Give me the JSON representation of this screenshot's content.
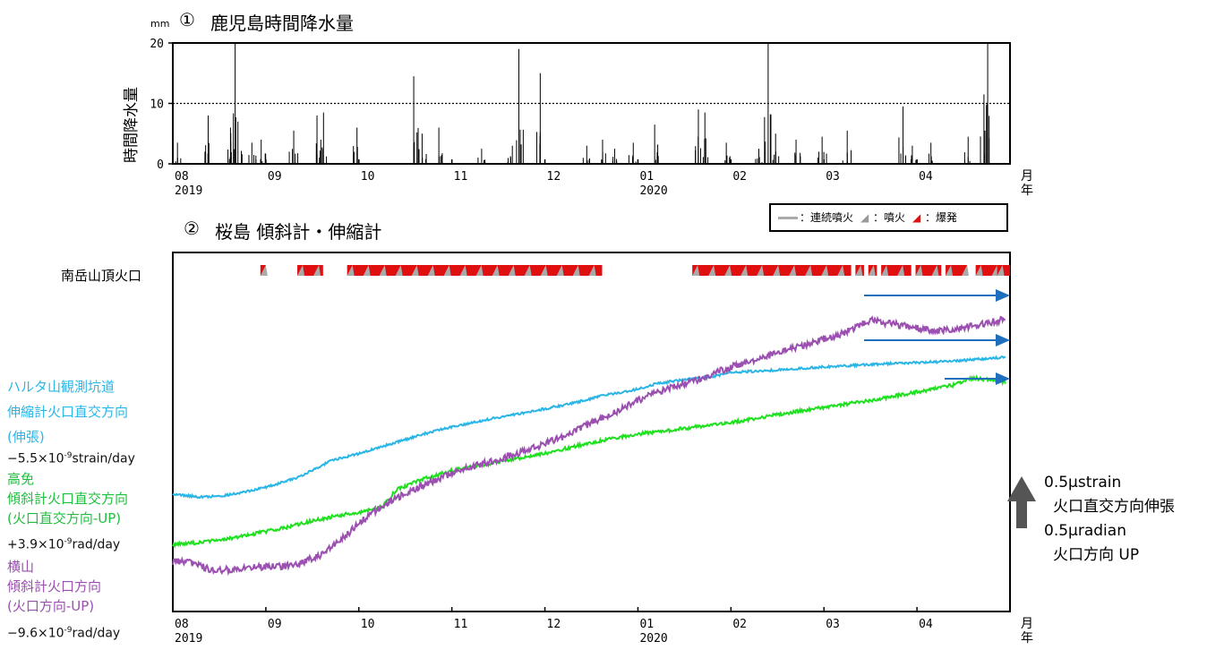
{
  "panel1": {
    "circled_num": "①",
    "title": "鹿児島時間降水量",
    "unit": "mm",
    "ylabel": "時間降水量",
    "yticks": [
      "20",
      "10",
      "0"
    ]
  },
  "panel2": {
    "circled_num": "②",
    "title": "桜島 傾斜計・伸縮計",
    "crater_label": "南岳山頂火口"
  },
  "legend": {
    "continuous": "：連続噴火",
    "eruption": "：噴火",
    "explosion": "：爆発"
  },
  "axis": {
    "months": [
      "08",
      "09",
      "10",
      "11",
      "12",
      "01",
      "02",
      "03",
      "04"
    ],
    "year_start": "2019",
    "year_mid": "2020",
    "month_word": "月",
    "year_word": "年"
  },
  "side_labels": {
    "haruta": {
      "line1": "ハルタ山観測坑道",
      "line2": "伸縮計火口直交方向",
      "line3": "(伸張)"
    },
    "haruta_rate": {
      "pre": "−5.5×10",
      "exp": "-9",
      "post": "strain/day"
    },
    "takamen": {
      "line1": "高免",
      "line2": "傾斜計火口直交方向",
      "line3": "(火口直交方向-UP)"
    },
    "takamen_rate": {
      "pre": "+3.9×10",
      "exp": "-9",
      "post": "rad/day"
    },
    "yokoyama": {
      "line1": "横山",
      "line2": "傾斜計火口方向",
      "line3": "(火口方向-UP)"
    },
    "yokoyama_rate": {
      "pre": "−9.6×10",
      "exp": "-9",
      "post": "rad/day"
    }
  },
  "scale": {
    "line1": "0.5μstrain",
    "line2": "火口直交方向伸張",
    "line3": "0.5μradian",
    "line4": "火口方向 UP"
  },
  "colors": {
    "strain": "#29b6e6",
    "tilt_takamen": "#1fe01f",
    "tilt_yokoyama": "#9b4fb0",
    "arrow": "#1f6fbf",
    "explosion": "#e01010",
    "eruption": "#aaaaaa"
  },
  "chart_data": [
    {
      "type": "bar",
      "title": "鹿児島時間降水量",
      "ylabel": "時間降水量",
      "unit": "mm",
      "ylim": [
        0,
        20
      ],
      "reference_line": 10,
      "x_range": [
        "2019-08-01",
        "2020-04-30"
      ],
      "x_unit": "month index (0 = 2019-08-01)",
      "peaks": [
        {
          "x": 0.05,
          "value": 3.5
        },
        {
          "x": 0.38,
          "value": 8
        },
        {
          "x": 0.62,
          "value": 6
        },
        {
          "x": 0.67,
          "value": 20
        },
        {
          "x": 0.7,
          "value": 7
        },
        {
          "x": 0.85,
          "value": 3.5
        },
        {
          "x": 0.95,
          "value": 4
        },
        {
          "x": 1.3,
          "value": 5.5
        },
        {
          "x": 1.55,
          "value": 8
        },
        {
          "x": 1.62,
          "value": 8.5
        },
        {
          "x": 1.98,
          "value": 6
        },
        {
          "x": 2.59,
          "value": 14.5
        },
        {
          "x": 2.68,
          "value": 5
        },
        {
          "x": 2.86,
          "value": 6
        },
        {
          "x": 3.32,
          "value": 2.5
        },
        {
          "x": 3.65,
          "value": 3
        },
        {
          "x": 3.72,
          "value": 19
        },
        {
          "x": 3.95,
          "value": 15
        },
        {
          "x": 4.45,
          "value": 3
        },
        {
          "x": 4.62,
          "value": 4
        },
        {
          "x": 4.75,
          "value": 2.5
        },
        {
          "x": 4.95,
          "value": 3.5
        },
        {
          "x": 5.18,
          "value": 6.5
        },
        {
          "x": 5.65,
          "value": 9
        },
        {
          "x": 5.72,
          "value": 8.5
        },
        {
          "x": 5.95,
          "value": 3.5
        },
        {
          "x": 6.3,
          "value": 2.5
        },
        {
          "x": 6.4,
          "value": 20
        },
        {
          "x": 6.48,
          "value": 5
        },
        {
          "x": 6.7,
          "value": 4
        },
        {
          "x": 6.98,
          "value": 4.5
        },
        {
          "x": 7.25,
          "value": 5.5
        },
        {
          "x": 7.85,
          "value": 9.5
        },
        {
          "x": 7.95,
          "value": 3
        },
        {
          "x": 8.15,
          "value": 3.5
        },
        {
          "x": 8.55,
          "value": 4.5
        },
        {
          "x": 8.72,
          "value": 11.5
        },
        {
          "x": 8.76,
          "value": 20
        }
      ]
    },
    {
      "type": "line",
      "title": "桜島 傾斜計・伸縮計",
      "x_range": [
        "2019-08-01",
        "2020-04-30"
      ],
      "x_unit": "month index (0 = 2019-08-01)",
      "value_unit": "fraction of vertical extent (0 = bottom, 1 = top)",
      "series": [
        {
          "name": "ハルタ山観測坑道 伸縮計火口直交方向 (伸張)",
          "x": [
            0,
            0.3,
            0.55,
            0.8,
            1.0,
            1.3,
            1.5,
            1.7,
            2.0,
            2.2,
            2.5,
            2.8,
            3.2,
            3.6,
            4.0,
            4.3,
            4.6,
            5.0,
            5.2,
            5.5,
            5.8,
            6.0,
            6.3,
            6.6,
            7.0,
            7.3,
            7.6,
            8.0,
            8.4,
            8.95
          ],
          "values": [
            0.265,
            0.255,
            0.26,
            0.275,
            0.29,
            0.32,
            0.35,
            0.385,
            0.41,
            0.43,
            0.46,
            0.49,
            0.52,
            0.545,
            0.57,
            0.59,
            0.615,
            0.64,
            0.66,
            0.675,
            0.685,
            0.7,
            0.705,
            0.71,
            0.72,
            0.725,
            0.73,
            0.735,
            0.74,
            0.755
          ]
        },
        {
          "name": "高免 傾斜計火口直交方向 (火口直交方向-UP)",
          "x": [
            0,
            0.2,
            0.5,
            0.9,
            1.2,
            1.5,
            1.8,
            2.0,
            2.25,
            2.4,
            2.7,
            3.0,
            3.5,
            4.0,
            4.5,
            5.0,
            5.5,
            6.0,
            6.5,
            7.0,
            7.5,
            8.0,
            8.4,
            8.6,
            8.95
          ],
          "values": [
            0.085,
            0.09,
            0.1,
            0.125,
            0.145,
            0.17,
            0.19,
            0.2,
            0.22,
            0.28,
            0.32,
            0.35,
            0.38,
            0.41,
            0.45,
            0.48,
            0.5,
            0.52,
            0.55,
            0.575,
            0.6,
            0.63,
            0.655,
            0.68,
            0.665
          ]
        },
        {
          "name": "横山 傾斜計火口方向 (火口方向-UP)",
          "x": [
            0,
            0.2,
            0.45,
            0.7,
            1.0,
            1.3,
            1.6,
            1.8,
            2.0,
            2.25,
            2.4,
            2.7,
            3.0,
            3.4,
            3.8,
            4.2,
            4.5,
            4.8,
            5.0,
            5.3,
            5.7,
            6.0,
            6.4,
            6.8,
            7.2,
            7.5,
            7.8,
            8.0,
            8.2,
            8.5,
            8.95
          ],
          "values": [
            0.025,
            0.02,
            -0.01,
            0.0,
            0.005,
            0.01,
            0.05,
            0.1,
            0.16,
            0.225,
            0.25,
            0.3,
            0.34,
            0.38,
            0.42,
            0.47,
            0.52,
            0.565,
            0.6,
            0.64,
            0.68,
            0.72,
            0.76,
            0.8,
            0.84,
            0.885,
            0.87,
            0.86,
            0.845,
            0.86,
            0.89
          ]
        }
      ],
      "eruption_periods": [
        {
          "start": 1.02,
          "end": 1.07
        },
        {
          "start": 1.45,
          "end": 1.75
        },
        {
          "start": 2.03,
          "end": 5.0
        },
        {
          "start": 6.05,
          "end": 7.9
        },
        {
          "start": 7.95,
          "end": 8.05
        },
        {
          "start": 8.1,
          "end": 8.2
        },
        {
          "start": 8.25,
          "end": 8.6
        },
        {
          "start": 8.65,
          "end": 8.95
        },
        {
          "start": 9.0,
          "end": 9.25
        },
        {
          "start": 9.35,
          "end": 9.6
        },
        {
          "start": 9.6,
          "end": 9.75
        }
      ]
    }
  ]
}
